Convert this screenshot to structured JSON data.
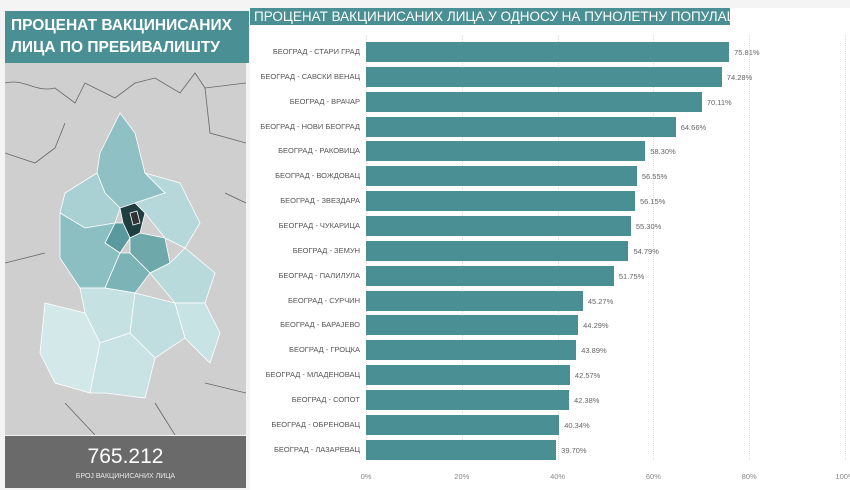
{
  "left_panel": {
    "title_line1": "ПРОЦЕНАТ ВАКЦИНИСАНИХ",
    "title_line2": "ЛИЦА ПО ПРЕБИВАЛИШТУ",
    "kpi_value": "765.212",
    "kpi_label": "БРОЈ ВАКЦИНИСАНИХ ЛИЦА"
  },
  "chart_data": {
    "type": "bar",
    "orientation": "horizontal",
    "title": "ПРОЦЕНАТ ВАКЦИНИСАНИХ ЛИЦА У ОДНОСУ НА ПУНОЛЕТНУ ПОПУЛАЦИЈУ",
    "categories": [
      "БЕОГРАД - СТАРИ ГРАД",
      "БЕОГРАД - САВСКИ ВЕНАЦ",
      "БЕОГРАД - ВРАЧАР",
      "БЕОГРАД - НОВИ БЕОГРАД",
      "БЕОГРАД - РАКОВИЦА",
      "БЕОГРАД - ВОЖДОВАЦ",
      "БЕОГРАД - ЗВЕЗДАРА",
      "БЕОГРАД - ЧУКАРИЦА",
      "БЕОГРАД - ЗЕМУН",
      "БЕОГРАД - ПАЛИЛУЛА",
      "БЕОГРАД - СУРЧИН",
      "БЕОГРАД - БАРАЈЕВО",
      "БЕОГРАД - ГРОЦКА",
      "БЕОГРАД - МЛАДЕНОВАЦ",
      "БЕОГРАД - СОПОТ",
      "БЕОГРАД - ОБРЕНОВАЦ",
      "БЕОГРАД - ЛАЗАРЕВАЦ"
    ],
    "values": [
      75.81,
      74.28,
      70.11,
      64.66,
      58.3,
      56.55,
      56.15,
      55.3,
      54.79,
      51.75,
      45.27,
      44.29,
      43.89,
      42.57,
      42.38,
      40.34,
      39.7
    ],
    "value_labels": [
      "75.81%",
      "74.28%",
      "70.11%",
      "64.66%",
      "58.30%",
      "56.55%",
      "56.15%",
      "55.30%",
      "54.79%",
      "51.75%",
      "45.27%",
      "44.29%",
      "43.89%",
      "42.57%",
      "42.38%",
      "40.34%",
      "39.70%"
    ],
    "xlim": [
      0,
      100
    ],
    "x_ticks": [
      "0%",
      "20%",
      "40%",
      "60%",
      "80%",
      "100%"
    ],
    "color": "#4a8f94"
  }
}
